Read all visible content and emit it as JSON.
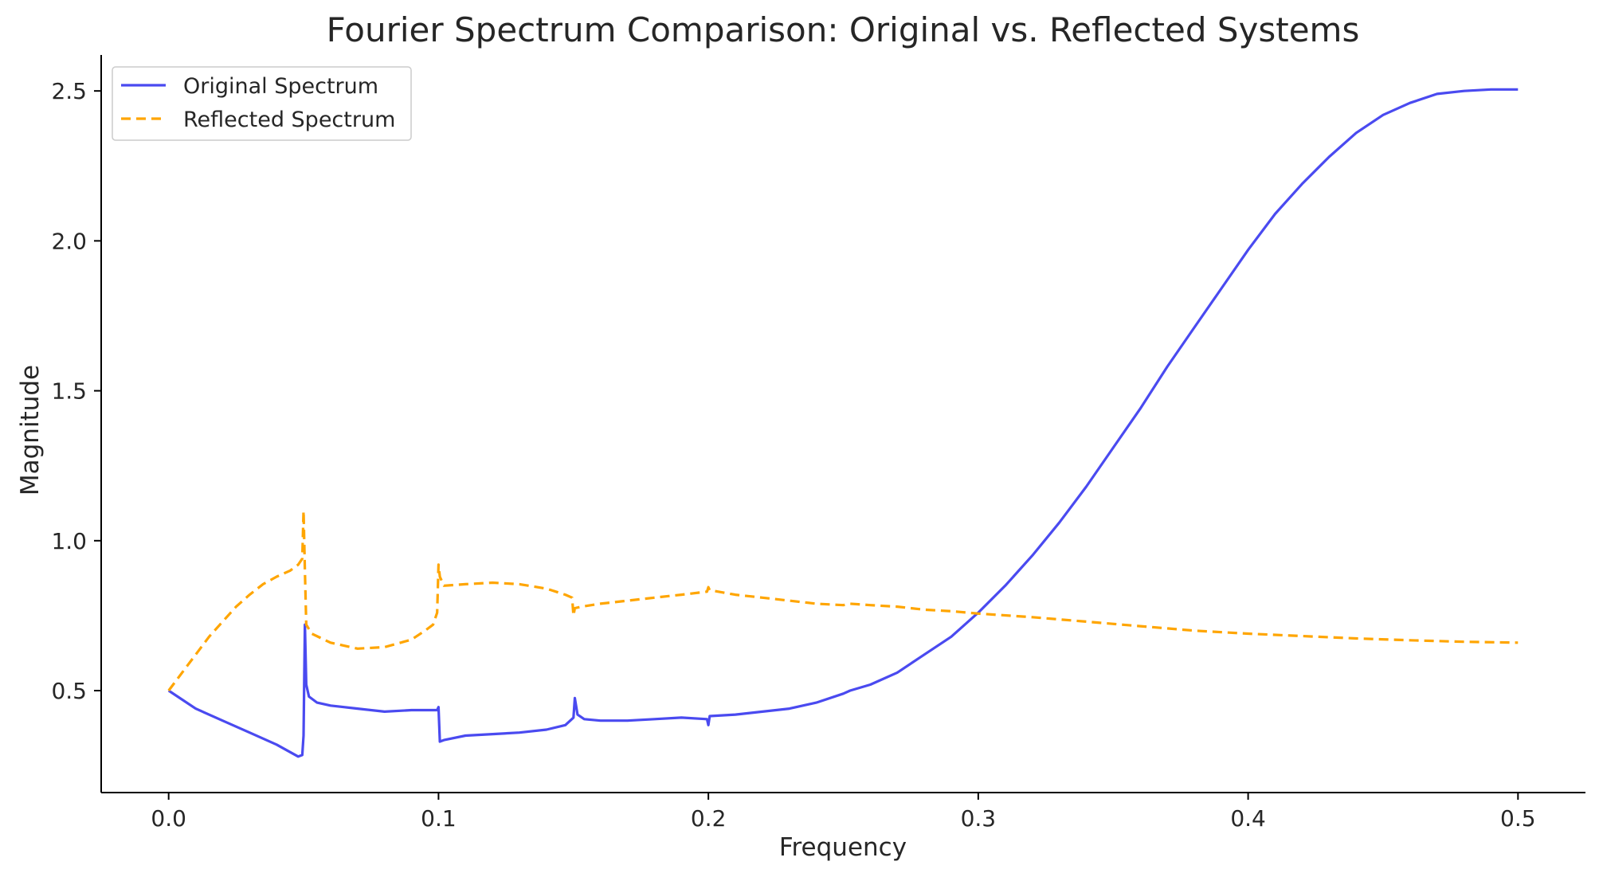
{
  "chart_data": {
    "type": "line",
    "title": "Fourier Spectrum Comparison: Original vs. Reflected Systems",
    "xlabel": "Frequency",
    "ylabel": "Magnitude",
    "xlim": [
      -0.025,
      0.525
    ],
    "ylim": [
      0.16,
      2.62
    ],
    "xticks": [
      "0.0",
      "0.1",
      "0.2",
      "0.3",
      "0.4",
      "0.5"
    ],
    "yticks": [
      "0.5",
      "1.0",
      "1.5",
      "2.0",
      "2.5"
    ],
    "grid": false,
    "legend_position": "top-left",
    "series": [
      {
        "name": "Original Spectrum",
        "color": "#4a4af0",
        "dash": "solid",
        "points": [
          [
            0.0,
            0.5
          ],
          [
            0.01,
            0.44
          ],
          [
            0.02,
            0.4
          ],
          [
            0.03,
            0.36
          ],
          [
            0.04,
            0.32
          ],
          [
            0.045,
            0.295
          ],
          [
            0.048,
            0.28
          ],
          [
            0.0495,
            0.285
          ],
          [
            0.05,
            0.35
          ],
          [
            0.0505,
            0.72
          ],
          [
            0.051,
            0.52
          ],
          [
            0.052,
            0.48
          ],
          [
            0.055,
            0.46
          ],
          [
            0.06,
            0.45
          ],
          [
            0.07,
            0.44
          ],
          [
            0.08,
            0.43
          ],
          [
            0.09,
            0.435
          ],
          [
            0.0995,
            0.435
          ],
          [
            0.1,
            0.445
          ],
          [
            0.1005,
            0.33
          ],
          [
            0.102,
            0.335
          ],
          [
            0.11,
            0.35
          ],
          [
            0.12,
            0.355
          ],
          [
            0.13,
            0.36
          ],
          [
            0.14,
            0.37
          ],
          [
            0.147,
            0.385
          ],
          [
            0.15,
            0.41
          ],
          [
            0.1505,
            0.475
          ],
          [
            0.1515,
            0.42
          ],
          [
            0.154,
            0.405
          ],
          [
            0.16,
            0.4
          ],
          [
            0.17,
            0.4
          ],
          [
            0.18,
            0.405
          ],
          [
            0.19,
            0.41
          ],
          [
            0.1995,
            0.405
          ],
          [
            0.2,
            0.385
          ],
          [
            0.2005,
            0.415
          ],
          [
            0.21,
            0.42
          ],
          [
            0.22,
            0.43
          ],
          [
            0.23,
            0.44
          ],
          [
            0.24,
            0.46
          ],
          [
            0.25,
            0.49
          ],
          [
            0.2525,
            0.5
          ],
          [
            0.26,
            0.52
          ],
          [
            0.27,
            0.56
          ],
          [
            0.28,
            0.62
          ],
          [
            0.29,
            0.68
          ],
          [
            0.3,
            0.76
          ],
          [
            0.31,
            0.85
          ],
          [
            0.32,
            0.95
          ],
          [
            0.33,
            1.06
          ],
          [
            0.34,
            1.18
          ],
          [
            0.35,
            1.31
          ],
          [
            0.36,
            1.44
          ],
          [
            0.37,
            1.58
          ],
          [
            0.38,
            1.71
          ],
          [
            0.39,
            1.84
          ],
          [
            0.4,
            1.97
          ],
          [
            0.41,
            2.09
          ],
          [
            0.42,
            2.19
          ],
          [
            0.43,
            2.28
          ],
          [
            0.44,
            2.36
          ],
          [
            0.45,
            2.42
          ],
          [
            0.46,
            2.46
          ],
          [
            0.47,
            2.49
          ],
          [
            0.48,
            2.5
          ],
          [
            0.49,
            2.505
          ],
          [
            0.5,
            2.505
          ]
        ]
      },
      {
        "name": "Reflected Spectrum",
        "color": "#ffa500",
        "dash": "dashed",
        "points": [
          [
            0.0,
            0.5
          ],
          [
            0.005,
            0.56
          ],
          [
            0.01,
            0.62
          ],
          [
            0.015,
            0.68
          ],
          [
            0.02,
            0.73
          ],
          [
            0.025,
            0.78
          ],
          [
            0.03,
            0.82
          ],
          [
            0.035,
            0.855
          ],
          [
            0.04,
            0.88
          ],
          [
            0.045,
            0.9
          ],
          [
            0.048,
            0.92
          ],
          [
            0.0495,
            0.94
          ],
          [
            0.05,
            1.1
          ],
          [
            0.0505,
            0.9
          ],
          [
            0.051,
            0.72
          ],
          [
            0.053,
            0.69
          ],
          [
            0.06,
            0.66
          ],
          [
            0.07,
            0.64
          ],
          [
            0.08,
            0.645
          ],
          [
            0.09,
            0.67
          ],
          [
            0.095,
            0.7
          ],
          [
            0.098,
            0.72
          ],
          [
            0.0995,
            0.76
          ],
          [
            0.1,
            0.92
          ],
          [
            0.1005,
            0.88
          ],
          [
            0.102,
            0.85
          ],
          [
            0.11,
            0.855
          ],
          [
            0.12,
            0.86
          ],
          [
            0.13,
            0.855
          ],
          [
            0.14,
            0.84
          ],
          [
            0.147,
            0.82
          ],
          [
            0.1495,
            0.81
          ],
          [
            0.15,
            0.75
          ],
          [
            0.1505,
            0.775
          ],
          [
            0.153,
            0.78
          ],
          [
            0.16,
            0.79
          ],
          [
            0.17,
            0.8
          ],
          [
            0.18,
            0.81
          ],
          [
            0.19,
            0.82
          ],
          [
            0.1995,
            0.83
          ],
          [
            0.2,
            0.845
          ],
          [
            0.2005,
            0.835
          ],
          [
            0.21,
            0.82
          ],
          [
            0.22,
            0.81
          ],
          [
            0.23,
            0.8
          ],
          [
            0.24,
            0.79
          ],
          [
            0.25,
            0.785
          ],
          [
            0.2525,
            0.79
          ],
          [
            0.26,
            0.785
          ],
          [
            0.27,
            0.78
          ],
          [
            0.28,
            0.77
          ],
          [
            0.29,
            0.765
          ],
          [
            0.3,
            0.757
          ],
          [
            0.32,
            0.745
          ],
          [
            0.34,
            0.73
          ],
          [
            0.36,
            0.715
          ],
          [
            0.38,
            0.7
          ],
          [
            0.4,
            0.69
          ],
          [
            0.42,
            0.682
          ],
          [
            0.44,
            0.674
          ],
          [
            0.46,
            0.668
          ],
          [
            0.48,
            0.663
          ],
          [
            0.5,
            0.66
          ]
        ]
      }
    ]
  }
}
